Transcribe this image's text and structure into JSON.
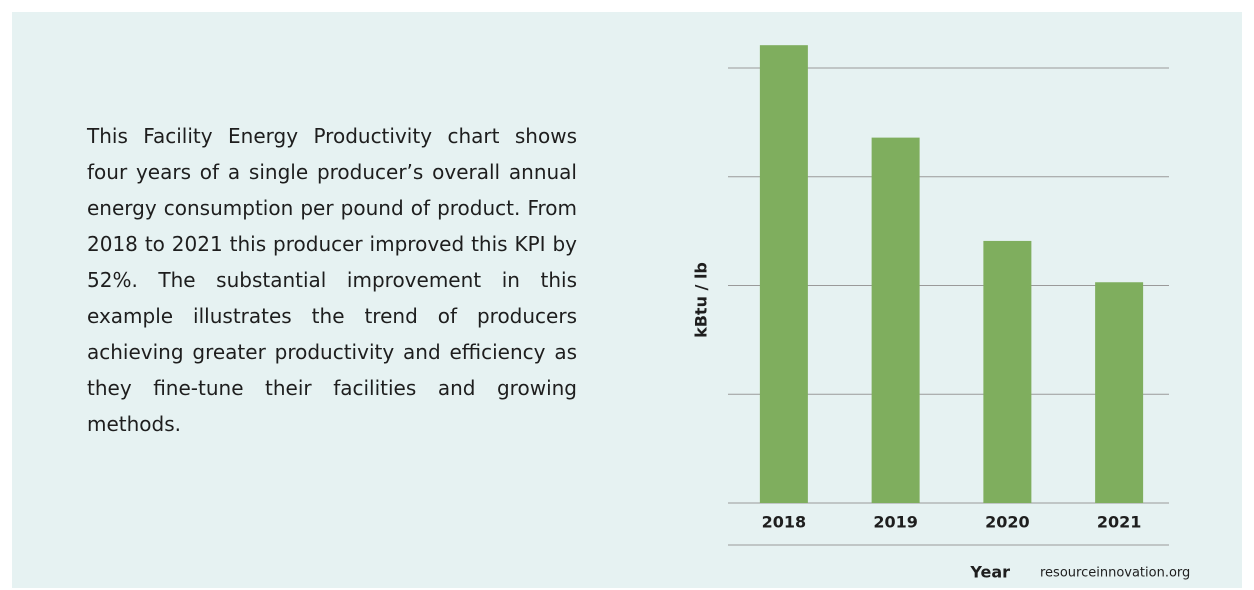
{
  "description": "This Facility Energy Productivity chart shows four years of a single producer’s overall annual energy consumption per pound of product. From 2018 to 2021 this producer improved this KPI by 52%. The substantial improvement in this example illustrates the trend of producers achieving greater productivity and efficiency as they fine-tune their facilities and growing methods.",
  "chart_data": {
    "type": "bar",
    "x_label": "Year",
    "y_label": "kBtu / lb",
    "categories": [
      "2018",
      "2019",
      "2020",
      "2021"
    ],
    "values": [
      4.21,
      3.36,
      2.41,
      2.03
    ],
    "color": "#7fae5e",
    "ylim": [
      0,
      4.3
    ],
    "yticks": [
      0,
      1,
      2,
      3,
      4
    ],
    "grid": true
  },
  "source": "resourceinnovation.org"
}
